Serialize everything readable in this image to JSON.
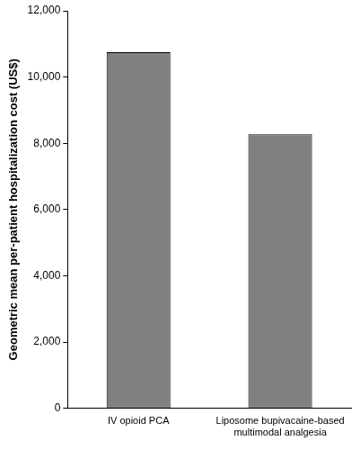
{
  "chart_data": {
    "type": "bar",
    "y_label": "Geometric mean per-patient hospitalization cost (US$)",
    "categories": [
      "IV opioid PCA",
      "Liposome bupivacaine-based multimodal analgesia"
    ],
    "values": [
      10750,
      8270
    ],
    "color": "#808080",
    "ylim": [
      0,
      12000
    ],
    "yticks": [
      0,
      {
        "value": 2000,
        "label": "2,000"
      },
      {
        "value": 4000,
        "label": "4,000"
      },
      {
        "value": 6000,
        "label": "6,000"
      },
      {
        "value": 8000,
        "label": "8,000"
      },
      {
        "value": 10000,
        "label": "10,000"
      },
      {
        "value": 12000,
        "label": "12,000"
      }
    ],
    "grid": false
  }
}
